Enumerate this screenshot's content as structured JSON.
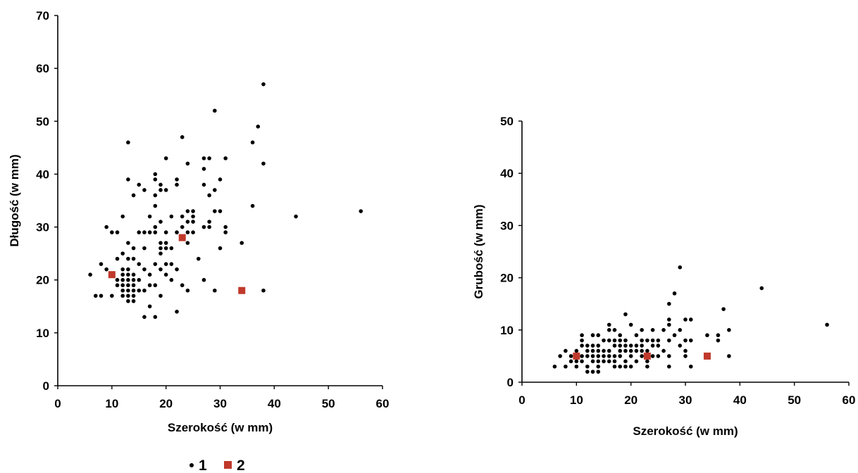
{
  "colors": {
    "series1": "#000000",
    "series2": "#c0392b",
    "axis": "#000000"
  },
  "legend": {
    "placement": "bottom-left",
    "entries": [
      "1",
      "2"
    ]
  },
  "chart_data": [
    {
      "type": "scatter",
      "title": "",
      "xlabel": "Szerokość (w mm)",
      "ylabel": "Długość (w mm)",
      "xlim": [
        0,
        60
      ],
      "ylim": [
        0,
        70
      ],
      "xticks": [
        0,
        10,
        20,
        30,
        40,
        50,
        60
      ],
      "yticks": [
        0,
        10,
        20,
        30,
        40,
        50,
        60,
        70
      ],
      "grid": false,
      "series": [
        {
          "name": "1",
          "points": [
            [
              6,
              21
            ],
            [
              7,
              17
            ],
            [
              8,
              17
            ],
            [
              8,
              23
            ],
            [
              9,
              30
            ],
            [
              9,
              22
            ],
            [
              10,
              29
            ],
            [
              10,
              17
            ],
            [
              10,
              21
            ],
            [
              11,
              29
            ],
            [
              11,
              24
            ],
            [
              11,
              20
            ],
            [
              11,
              19
            ],
            [
              12,
              32
            ],
            [
              12,
              25
            ],
            [
              12,
              22
            ],
            [
              12,
              21
            ],
            [
              12,
              20
            ],
            [
              12,
              19
            ],
            [
              12,
              18
            ],
            [
              12,
              17
            ],
            [
              13,
              46
            ],
            [
              13,
              39
            ],
            [
              13,
              27
            ],
            [
              13,
              24
            ],
            [
              13,
              22
            ],
            [
              13,
              21
            ],
            [
              13,
              20
            ],
            [
              13,
              19
            ],
            [
              13,
              18
            ],
            [
              13,
              17
            ],
            [
              13,
              16
            ],
            [
              14,
              36
            ],
            [
              14,
              26
            ],
            [
              14,
              24
            ],
            [
              14,
              21
            ],
            [
              14,
              20
            ],
            [
              14,
              19
            ],
            [
              14,
              18
            ],
            [
              14,
              17
            ],
            [
              14,
              16
            ],
            [
              15,
              38
            ],
            [
              15,
              29
            ],
            [
              15,
              23
            ],
            [
              15,
              20
            ],
            [
              15,
              18
            ],
            [
              16,
              37
            ],
            [
              16,
              29
            ],
            [
              16,
              26
            ],
            [
              16,
              22
            ],
            [
              16,
              18
            ],
            [
              16,
              13
            ],
            [
              17,
              32
            ],
            [
              17,
              29
            ],
            [
              17,
              21
            ],
            [
              17,
              19
            ],
            [
              17,
              15
            ],
            [
              18,
              40
            ],
            [
              18,
              39
            ],
            [
              18,
              36
            ],
            [
              18,
              34
            ],
            [
              18,
              30
            ],
            [
              18,
              29
            ],
            [
              18,
              23
            ],
            [
              18,
              19
            ],
            [
              18,
              13
            ],
            [
              19,
              38
            ],
            [
              19,
              37
            ],
            [
              19,
              31
            ],
            [
              19,
              27
            ],
            [
              19,
              26
            ],
            [
              19,
              25
            ],
            [
              19,
              22
            ],
            [
              19,
              17
            ],
            [
              20,
              43
            ],
            [
              20,
              37
            ],
            [
              20,
              29
            ],
            [
              20,
              27
            ],
            [
              20,
              26
            ],
            [
              20,
              23
            ],
            [
              20,
              21
            ],
            [
              21,
              32
            ],
            [
              21,
              26
            ],
            [
              21,
              20
            ],
            [
              21,
              23
            ],
            [
              22,
              39
            ],
            [
              22,
              38
            ],
            [
              22,
              29
            ],
            [
              22,
              22
            ],
            [
              22,
              14
            ],
            [
              23,
              47
            ],
            [
              23,
              32
            ],
            [
              23,
              30
            ],
            [
              23,
              19
            ],
            [
              24,
              42
            ],
            [
              24,
              33
            ],
            [
              24,
              31
            ],
            [
              24,
              29
            ],
            [
              24,
              27
            ],
            [
              24,
              18
            ],
            [
              25,
              33
            ],
            [
              25,
              32
            ],
            [
              25,
              31
            ],
            [
              25,
              29
            ],
            [
              26,
              24
            ],
            [
              27,
              43
            ],
            [
              27,
              41
            ],
            [
              27,
              38
            ],
            [
              27,
              30
            ],
            [
              27,
              20
            ],
            [
              28,
              43
            ],
            [
              28,
              36
            ],
            [
              28,
              31
            ],
            [
              28,
              30
            ],
            [
              29,
              52
            ],
            [
              29,
              37
            ],
            [
              29,
              33
            ],
            [
              29,
              18
            ],
            [
              30,
              39
            ],
            [
              30,
              33
            ],
            [
              30,
              26
            ],
            [
              31,
              43
            ],
            [
              31,
              30
            ],
            [
              31,
              29
            ],
            [
              34,
              27
            ],
            [
              36,
              46
            ],
            [
              36,
              34
            ],
            [
              37,
              49
            ],
            [
              38,
              57
            ],
            [
              38,
              42
            ],
            [
              38,
              18
            ],
            [
              44,
              32
            ],
            [
              56,
              33
            ]
          ]
        },
        {
          "name": "2",
          "points": [
            [
              10,
              21
            ],
            [
              23,
              28
            ],
            [
              34,
              18
            ]
          ]
        }
      ]
    },
    {
      "type": "scatter",
      "title": "",
      "xlabel": "Szerokość (w mm)",
      "ylabel": "Grubość (w mm)",
      "xlim": [
        0,
        60
      ],
      "ylim": [
        0,
        50
      ],
      "xticks": [
        0,
        10,
        20,
        30,
        40,
        50,
        60
      ],
      "yticks": [
        0,
        10,
        20,
        30,
        40,
        50
      ],
      "grid": false,
      "series": [
        {
          "name": "1",
          "points": [
            [
              6,
              3
            ],
            [
              7,
              5
            ],
            [
              8,
              6
            ],
            [
              8,
              3
            ],
            [
              9,
              4
            ],
            [
              9,
              5
            ],
            [
              10,
              6
            ],
            [
              10,
              4
            ],
            [
              10,
              3
            ],
            [
              11,
              9
            ],
            [
              11,
              8
            ],
            [
              11,
              7
            ],
            [
              11,
              5
            ],
            [
              11,
              4
            ],
            [
              12,
              7
            ],
            [
              12,
              6
            ],
            [
              12,
              5
            ],
            [
              12,
              3
            ],
            [
              12,
              2
            ],
            [
              13,
              9
            ],
            [
              13,
              7
            ],
            [
              13,
              6
            ],
            [
              13,
              5
            ],
            [
              13,
              4
            ],
            [
              13,
              2
            ],
            [
              14,
              9
            ],
            [
              14,
              7
            ],
            [
              14,
              6
            ],
            [
              14,
              5
            ],
            [
              14,
              4
            ],
            [
              14,
              3
            ],
            [
              14,
              2
            ],
            [
              15,
              8
            ],
            [
              15,
              6
            ],
            [
              15,
              5
            ],
            [
              15,
              4
            ],
            [
              16,
              11
            ],
            [
              16,
              10
            ],
            [
              16,
              8
            ],
            [
              16,
              6
            ],
            [
              16,
              5
            ],
            [
              16,
              4
            ],
            [
              17,
              10
            ],
            [
              17,
              8
            ],
            [
              17,
              7
            ],
            [
              17,
              5
            ],
            [
              17,
              4
            ],
            [
              17,
              3
            ],
            [
              18,
              9
            ],
            [
              18,
              8
            ],
            [
              18,
              7
            ],
            [
              18,
              6
            ],
            [
              18,
              5
            ],
            [
              18,
              3
            ],
            [
              19,
              13
            ],
            [
              19,
              8
            ],
            [
              19,
              7
            ],
            [
              19,
              6
            ],
            [
              19,
              4
            ],
            [
              19,
              3
            ],
            [
              20,
              11
            ],
            [
              20,
              7
            ],
            [
              20,
              6
            ],
            [
              20,
              5
            ],
            [
              20,
              3
            ],
            [
              21,
              9
            ],
            [
              21,
              7
            ],
            [
              21,
              6
            ],
            [
              21,
              4
            ],
            [
              22,
              10
            ],
            [
              22,
              8
            ],
            [
              22,
              7
            ],
            [
              22,
              6
            ],
            [
              22,
              5
            ],
            [
              23,
              8
            ],
            [
              23,
              6
            ],
            [
              23,
              4
            ],
            [
              23,
              3
            ],
            [
              24,
              10
            ],
            [
              24,
              8
            ],
            [
              24,
              7
            ],
            [
              24,
              5
            ],
            [
              25,
              8
            ],
            [
              25,
              7
            ],
            [
              25,
              5
            ],
            [
              26,
              10
            ],
            [
              26,
              6
            ],
            [
              27,
              15
            ],
            [
              27,
              12
            ],
            [
              27,
              11
            ],
            [
              27,
              8
            ],
            [
              27,
              5
            ],
            [
              27,
              3
            ],
            [
              28,
              17
            ],
            [
              28,
              9
            ],
            [
              29,
              22
            ],
            [
              29,
              10
            ],
            [
              29,
              7
            ],
            [
              30,
              12
            ],
            [
              30,
              8
            ],
            [
              30,
              6
            ],
            [
              30,
              5
            ],
            [
              31,
              12
            ],
            [
              31,
              8
            ],
            [
              31,
              3
            ],
            [
              34,
              9
            ],
            [
              36,
              9
            ],
            [
              36,
              8
            ],
            [
              37,
              14
            ],
            [
              38,
              10
            ],
            [
              38,
              5
            ],
            [
              44,
              18
            ],
            [
              56,
              11
            ]
          ]
        },
        {
          "name": "2",
          "points": [
            [
              10,
              5
            ],
            [
              23,
              5
            ],
            [
              34,
              5
            ]
          ]
        }
      ]
    }
  ]
}
